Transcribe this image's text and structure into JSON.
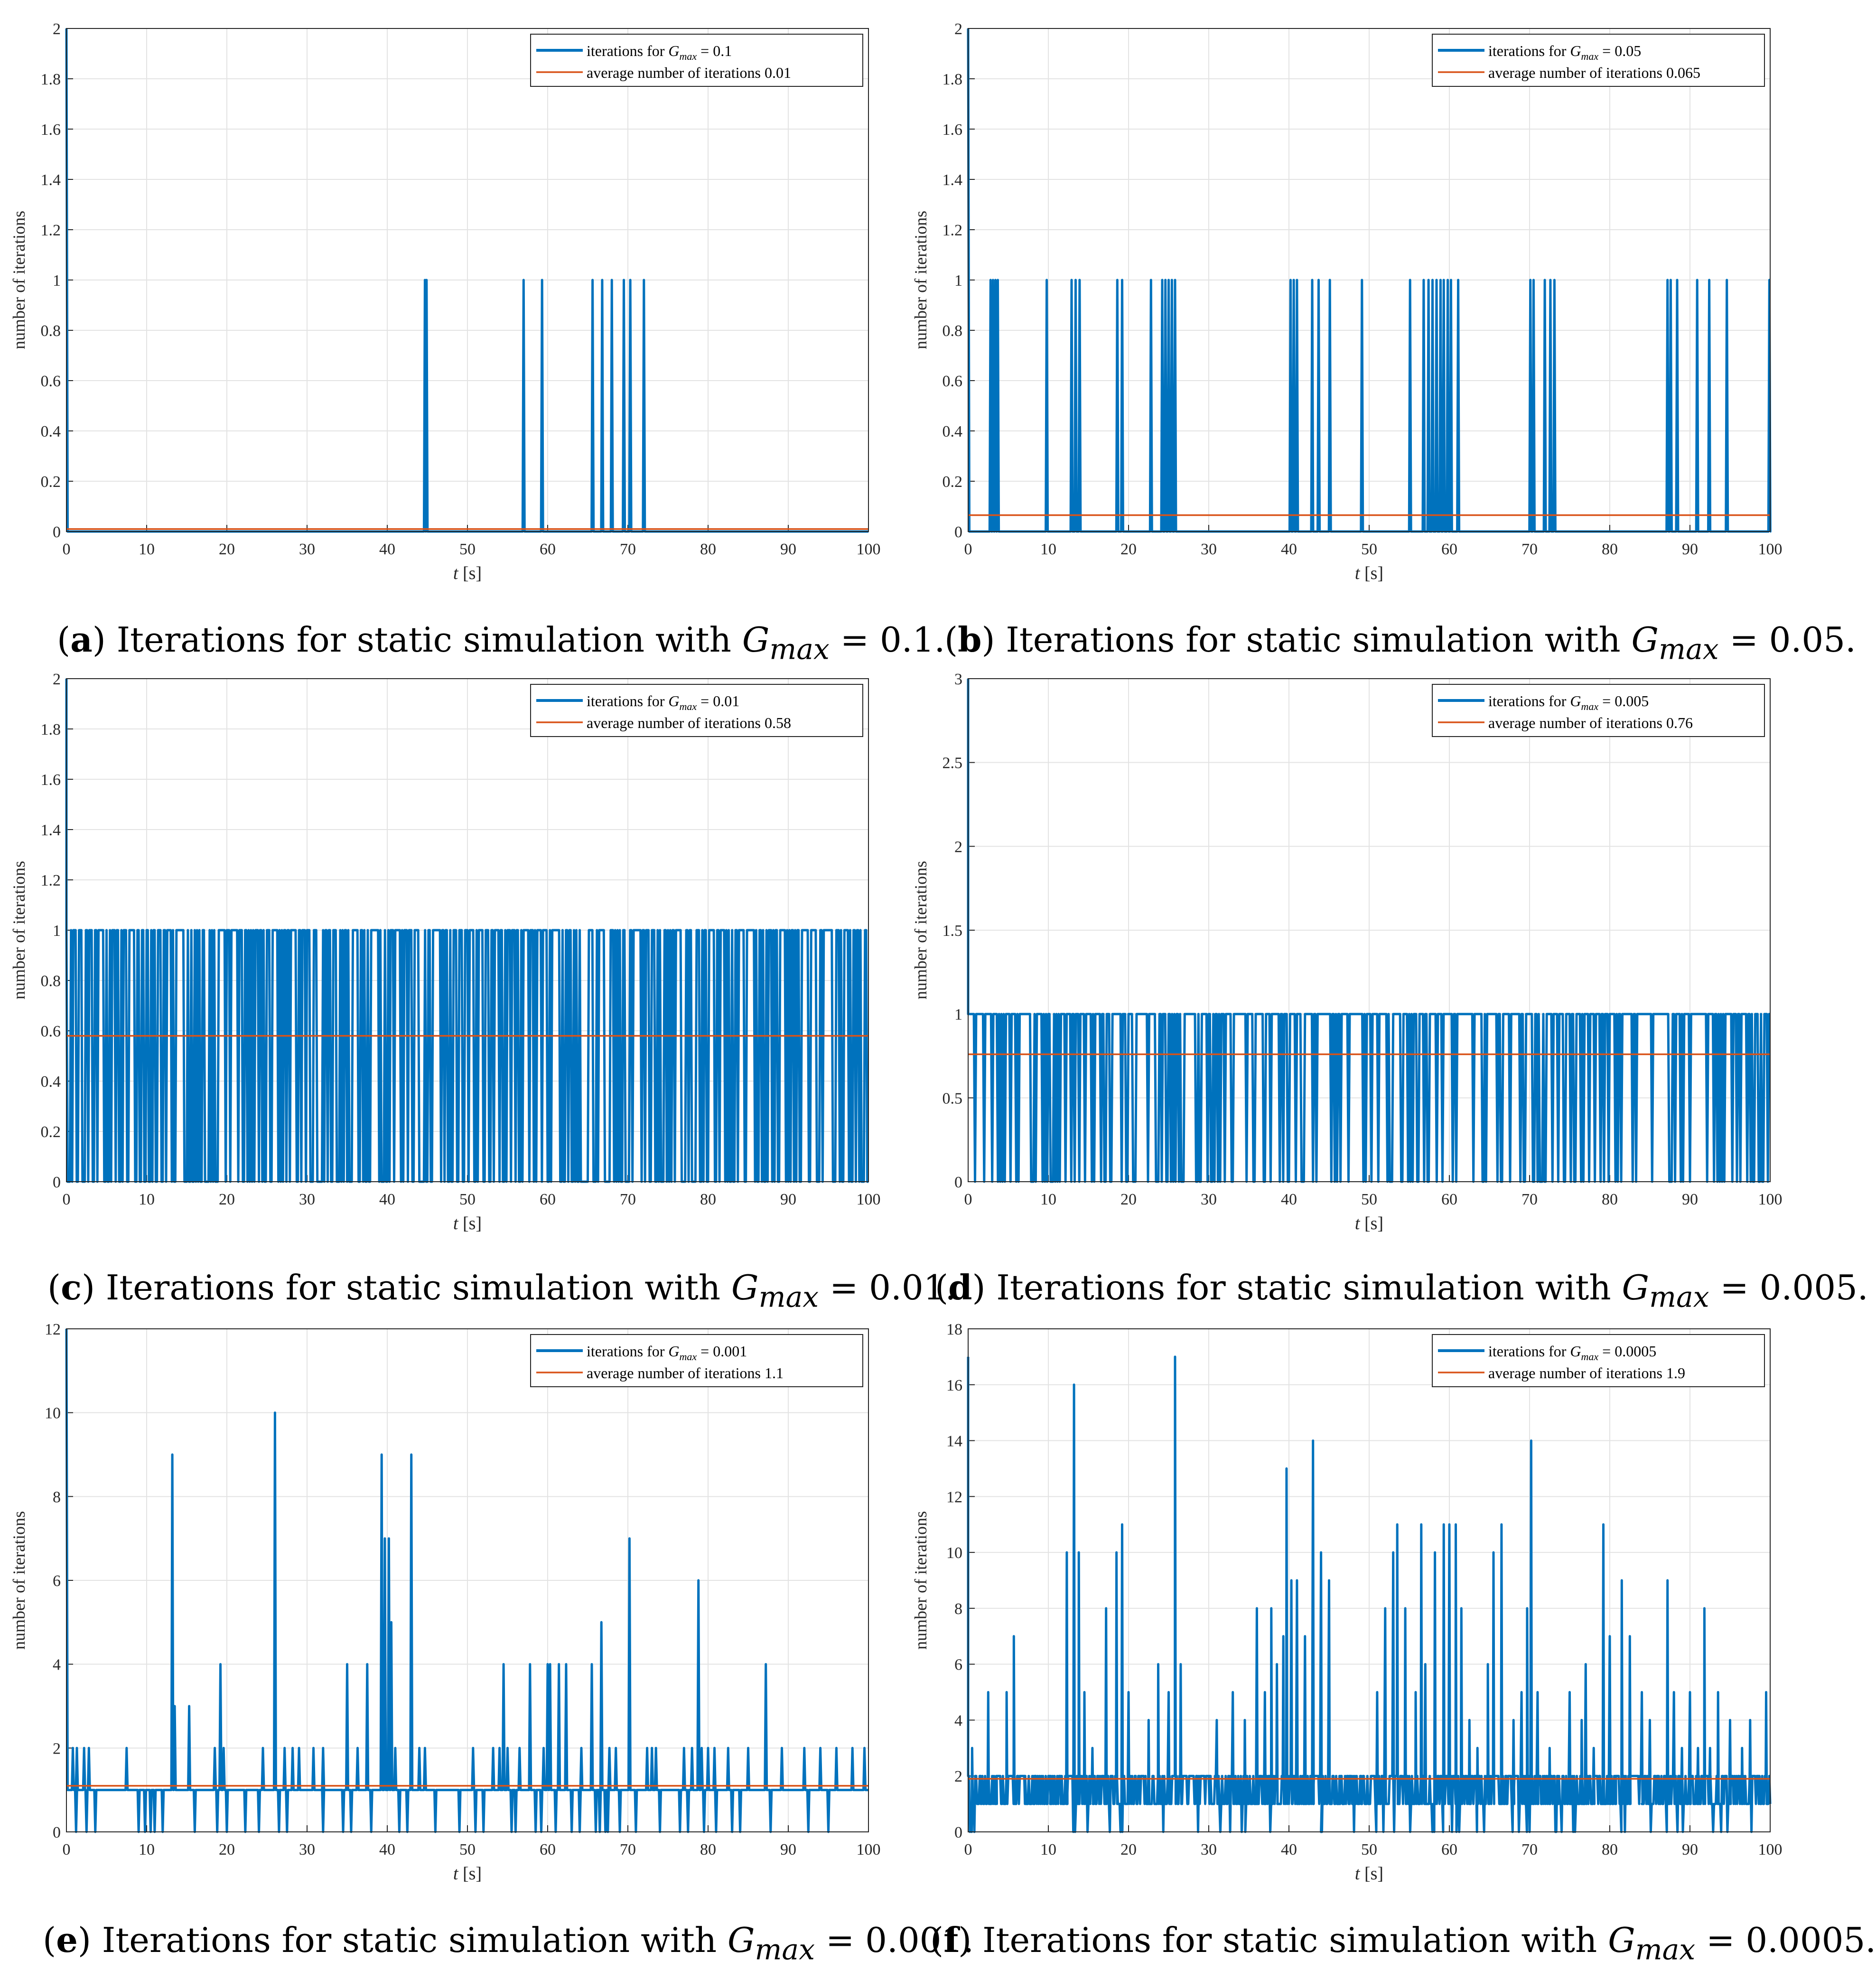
{
  "ylabel": "number of iterations",
  "xlabel_t": "t",
  "xlabel_unit": "[s]",
  "chart_data": [
    {
      "id": "a",
      "type": "line",
      "caption_letter": "a",
      "caption_text": "Iterations for static simulation with",
      "caption_symbol": "G",
      "caption_sub": "max",
      "caption_value": "= 0.1.",
      "legend_series": "iterations for G",
      "legend_series_sub": "max",
      "legend_series_value": "= 0.1",
      "legend_avg": "average number of iterations 0.01",
      "xlim": [
        0,
        100
      ],
      "ylim": [
        0,
        2
      ],
      "xticks": [
        0,
        10,
        20,
        30,
        40,
        50,
        60,
        70,
        80,
        90,
        100
      ],
      "yticks": [
        0,
        0.2,
        0.4,
        0.6,
        0.8,
        1,
        1.2,
        1.4,
        1.6,
        1.8,
        2
      ],
      "ytick_labels": [
        "0",
        "0.2",
        "0.4",
        "0.6",
        "0.8",
        "1",
        "1.2",
        "1.4",
        "1.6",
        "1.8",
        "2"
      ],
      "average": 0.01,
      "series_pattern": "spikes",
      "start_value": 2,
      "spike_times": [
        44.7,
        44.9,
        57.0,
        59.3,
        65.6,
        66.8,
        68.0,
        69.5,
        70.3,
        72.0
      ],
      "spike_values": [
        1,
        1,
        1,
        1,
        1,
        1,
        1,
        1,
        1,
        1
      ],
      "baseline": 0,
      "colors": {
        "series": "#0072BD",
        "average": "#D95319"
      }
    },
    {
      "id": "b",
      "type": "line",
      "caption_letter": "b",
      "caption_text": "Iterations for static simulation with",
      "caption_symbol": "G",
      "caption_sub": "max",
      "caption_value": "= 0.05.",
      "legend_series": "iterations for G",
      "legend_series_sub": "max",
      "legend_series_value": "= 0.05",
      "legend_avg": "average number of iterations 0.065",
      "xlim": [
        0,
        100
      ],
      "ylim": [
        0,
        2
      ],
      "xticks": [
        0,
        10,
        20,
        30,
        40,
        50,
        60,
        70,
        80,
        90,
        100
      ],
      "yticks": [
        0,
        0.2,
        0.4,
        0.6,
        0.8,
        1,
        1.2,
        1.4,
        1.6,
        1.8,
        2
      ],
      "ytick_labels": [
        "0",
        "0.2",
        "0.4",
        "0.6",
        "0.8",
        "1",
        "1.2",
        "1.4",
        "1.6",
        "1.8",
        "2"
      ],
      "average": 0.065,
      "series_pattern": "spikes",
      "start_value": 2,
      "spike_times": [
        2.8,
        3.1,
        3.4,
        3.7,
        9.8,
        12.9,
        13.4,
        13.9,
        18.6,
        19.2,
        22.8,
        24.2,
        24.6,
        25.0,
        25.4,
        25.8,
        40.2,
        40.6,
        41.0,
        42.9,
        43.7,
        45.1,
        49.1,
        55.1,
        56.8,
        57.4,
        57.9,
        58.4,
        58.9,
        59.3,
        59.8,
        60.2,
        61.1,
        70.1,
        70.5,
        71.9,
        72.6,
        73.1,
        87.2,
        87.6,
        88.4,
        90.9,
        92.4,
        94.6,
        99.9
      ],
      "spike_values": [
        1,
        1,
        1,
        1,
        1,
        1,
        1,
        1,
        1,
        1,
        1,
        1,
        1,
        1,
        1,
        1,
        1,
        1,
        1,
        1,
        1,
        1,
        1,
        1,
        1,
        1,
        1,
        1,
        1,
        1,
        1,
        1,
        1,
        1,
        1,
        1,
        1,
        1,
        1,
        1,
        1,
        1,
        1,
        1,
        1
      ],
      "baseline": 0,
      "colors": {
        "series": "#0072BD",
        "average": "#D95319"
      }
    },
    {
      "id": "c",
      "type": "line",
      "caption_letter": "c",
      "caption_text": "Iterations for static simulation with",
      "caption_symbol": "G",
      "caption_sub": "max",
      "caption_value": "= 0.01.",
      "legend_series": "iterations for G",
      "legend_series_sub": "max",
      "legend_series_value": "= 0.01",
      "legend_avg": "average number of iterations 0.58",
      "xlim": [
        0,
        100
      ],
      "ylim": [
        0,
        2
      ],
      "xticks": [
        0,
        10,
        20,
        30,
        40,
        50,
        60,
        70,
        80,
        90,
        100
      ],
      "yticks": [
        0,
        0.2,
        0.4,
        0.6,
        0.8,
        1,
        1.2,
        1.4,
        1.6,
        1.8,
        2
      ],
      "ytick_labels": [
        "0",
        "0.2",
        "0.4",
        "0.6",
        "0.8",
        "1",
        "1.2",
        "1.4",
        "1.6",
        "1.8",
        "2"
      ],
      "average": 0.58,
      "series_pattern": "binary-dense",
      "start_value": 2,
      "low": 0,
      "high": 1,
      "density": 0.58,
      "samples": 700,
      "seed": 7,
      "colors": {
        "series": "#0072BD",
        "average": "#D95319"
      }
    },
    {
      "id": "d",
      "type": "line",
      "caption_letter": "d",
      "caption_text": "Iterations for static simulation with",
      "caption_symbol": "G",
      "caption_sub": "max",
      "caption_value": "= 0.005.",
      "legend_series": "iterations for G",
      "legend_series_sub": "max",
      "legend_series_value": "= 0.005",
      "legend_avg": "average number of iterations 0.76",
      "xlim": [
        0,
        100
      ],
      "ylim": [
        0,
        3
      ],
      "xticks": [
        0,
        10,
        20,
        30,
        40,
        50,
        60,
        70,
        80,
        90,
        100
      ],
      "yticks": [
        0,
        0.5,
        1,
        1.5,
        2,
        2.5,
        3
      ],
      "ytick_labels": [
        "0",
        "0.5",
        "1",
        "1.5",
        "2",
        "2.5",
        "3"
      ],
      "average": 0.76,
      "series_pattern": "binary-dense",
      "start_value": 3,
      "low": 0,
      "high": 1,
      "density": 0.76,
      "samples": 700,
      "seed": 13,
      "colors": {
        "series": "#0072BD",
        "average": "#D95319"
      }
    },
    {
      "id": "e",
      "type": "line",
      "caption_letter": "e",
      "caption_text": "Iterations for static simulation with",
      "caption_symbol": "G",
      "caption_sub": "max",
      "caption_value": "= 0.001.",
      "legend_series": "iterations for G",
      "legend_series_sub": "max",
      "legend_series_value": "= 0.001",
      "legend_avg": "average number of iterations 1.1",
      "xlim": [
        0,
        100
      ],
      "ylim": [
        0,
        12
      ],
      "xticks": [
        0,
        10,
        20,
        30,
        40,
        50,
        60,
        70,
        80,
        90,
        100
      ],
      "yticks": [
        0,
        2,
        4,
        6,
        8,
        10,
        12
      ],
      "ytick_labels": [
        "0",
        "2",
        "4",
        "6",
        "8",
        "10",
        "12"
      ],
      "average": 1.1,
      "series_pattern": "spikes",
      "start_value": 12,
      "baseline": 1,
      "spike_times": [
        0.8,
        1.3,
        2.2,
        2.8,
        7.5,
        13.2,
        13.5,
        15.3,
        18.5,
        19.2,
        19.6,
        24.5,
        26.0,
        27.2,
        28.2,
        29.0,
        30.8,
        32.0,
        35.0,
        36.3,
        37.5,
        39.3,
        39.7,
        40.2,
        40.5,
        41.0,
        43.0,
        44.0,
        44.7,
        50.7,
        53.2,
        54.0,
        54.5,
        55.0,
        56.5,
        57.8,
        59.5,
        60.0,
        60.3,
        61.4,
        62.3,
        64.2,
        65.5,
        66.7,
        67.7,
        68.5,
        70.2,
        72.4,
        73.0,
        73.5,
        77.0,
        78.0,
        78.8,
        79.2,
        80.0,
        80.8,
        82.5,
        85.0,
        87.2,
        89.2,
        92.0,
        94.0,
        96.0,
        98.0,
        99.5
      ],
      "spike_values": [
        2,
        2,
        2,
        2,
        2,
        9,
        3,
        3,
        2,
        4,
        2,
        2,
        10,
        2,
        2,
        2,
        2,
        2,
        4,
        2,
        4,
        9,
        7,
        7,
        5,
        2,
        9,
        2,
        2,
        2,
        2,
        2,
        4,
        2,
        2,
        4,
        2,
        4,
        4,
        4,
        4,
        2,
        4,
        5,
        2,
        2,
        7,
        2,
        2,
        2,
        2,
        2,
        6,
        2,
        2,
        2,
        2,
        2,
        4,
        2,
        2,
        2,
        2,
        2,
        2
      ],
      "dip_times": [
        1.2,
        2.5,
        3.6,
        9.0,
        9.8,
        10.5,
        11.0,
        12.0,
        16.0,
        18.8,
        20.0,
        22.3,
        24.0,
        26.5,
        27.5,
        32.0,
        34.5,
        35.5,
        38.0,
        41.5,
        42.5,
        46.0,
        49.0,
        51.0,
        52.0,
        55.5,
        56.0,
        58.5,
        59.2,
        61.0,
        63.0,
        64.0,
        66.0,
        66.5,
        67.2,
        67.5,
        69.0,
        71.0,
        74.0,
        76.5,
        77.5,
        79.5,
        81.0,
        83.0,
        84.0,
        87.8,
        92.5,
        95.0
      ],
      "colors": {
        "series": "#0072BD",
        "average": "#D95319"
      }
    },
    {
      "id": "f",
      "type": "line",
      "caption_letter": "f",
      "caption_text": "Iterations for static simulation with",
      "caption_symbol": "G",
      "caption_sub": "max",
      "caption_value": "= 0.0005.",
      "legend_series": "iterations for G",
      "legend_series_sub": "max",
      "legend_series_value": "= 0.0005",
      "legend_avg": "average number of iterations 1.9",
      "xlim": [
        0,
        100
      ],
      "ylim": [
        0,
        18
      ],
      "xticks": [
        0,
        10,
        20,
        30,
        40,
        50,
        60,
        70,
        80,
        90,
        100
      ],
      "yticks": [
        0,
        2,
        4,
        6,
        8,
        10,
        12,
        14,
        16,
        18
      ],
      "ytick_labels": [
        "0",
        "2",
        "4",
        "6",
        "8",
        "10",
        "12",
        "14",
        "16",
        "18"
      ],
      "average": 1.9,
      "series_pattern": "noisy",
      "start_value": 17,
      "baseline": 1,
      "peaks": [
        [
          0.5,
          3
        ],
        [
          1.5,
          2
        ],
        [
          2.5,
          5
        ],
        [
          3.5,
          2
        ],
        [
          4.8,
          5
        ],
        [
          5.7,
          7
        ],
        [
          7.0,
          2
        ],
        [
          8.2,
          2
        ],
        [
          10.2,
          2
        ],
        [
          11.5,
          2
        ],
        [
          12.3,
          10
        ],
        [
          13.2,
          16
        ],
        [
          13.8,
          10
        ],
        [
          14.5,
          5
        ],
        [
          15.5,
          3
        ],
        [
          17.2,
          8
        ],
        [
          18.5,
          10
        ],
        [
          19.2,
          11
        ],
        [
          20.0,
          5
        ],
        [
          22.5,
          4
        ],
        [
          23.7,
          6
        ],
        [
          25.0,
          5
        ],
        [
          25.8,
          17
        ],
        [
          26.5,
          6
        ],
        [
          28.5,
          2
        ],
        [
          30.0,
          2
        ],
        [
          31.0,
          4
        ],
        [
          33.0,
          5
        ],
        [
          34.5,
          4
        ],
        [
          36.0,
          8
        ],
        [
          37.0,
          5
        ],
        [
          37.8,
          8
        ],
        [
          38.5,
          6
        ],
        [
          39.3,
          7
        ],
        [
          39.7,
          13
        ],
        [
          40.3,
          9
        ],
        [
          41.0,
          9
        ],
        [
          42.0,
          7
        ],
        [
          43.0,
          14
        ],
        [
          44.0,
          10
        ],
        [
          45.0,
          9
        ],
        [
          46.3,
          2
        ],
        [
          47.5,
          2
        ],
        [
          49.0,
          2
        ],
        [
          51.0,
          5
        ],
        [
          52.0,
          8
        ],
        [
          53.0,
          10
        ],
        [
          53.5,
          11
        ],
        [
          54.5,
          8
        ],
        [
          55.8,
          5
        ],
        [
          56.5,
          11
        ],
        [
          57.0,
          6
        ],
        [
          58.2,
          10
        ],
        [
          59.3,
          11
        ],
        [
          60.0,
          11
        ],
        [
          60.8,
          11
        ],
        [
          61.5,
          8
        ],
        [
          62.5,
          4
        ],
        [
          63.5,
          3
        ],
        [
          64.8,
          6
        ],
        [
          65.5,
          10
        ],
        [
          66.5,
          11
        ],
        [
          67.0,
          2
        ],
        [
          68.0,
          4
        ],
        [
          69.0,
          5
        ],
        [
          69.7,
          8
        ],
        [
          70.2,
          14
        ],
        [
          71.0,
          5
        ],
        [
          72.5,
          3
        ],
        [
          73.5,
          2
        ],
        [
          75.0,
          5
        ],
        [
          76.5,
          4
        ],
        [
          77.0,
          6
        ],
        [
          78.0,
          3
        ],
        [
          79.2,
          11
        ],
        [
          80.0,
          7
        ],
        [
          80.7,
          2
        ],
        [
          81.5,
          9
        ],
        [
          82.5,
          7
        ],
        [
          84.0,
          5
        ],
        [
          85.0,
          4
        ],
        [
          86.0,
          2
        ],
        [
          87.2,
          9
        ],
        [
          88.0,
          5
        ],
        [
          89.0,
          3
        ],
        [
          90.0,
          5
        ],
        [
          91.0,
          3
        ],
        [
          91.8,
          8
        ],
        [
          92.5,
          3
        ],
        [
          93.5,
          5
        ],
        [
          95.0,
          4
        ],
        [
          96.5,
          3
        ],
        [
          97.5,
          4
        ],
        [
          98.5,
          2
        ],
        [
          99.5,
          5
        ]
      ],
      "colors": {
        "series": "#0072BD",
        "average": "#D95319"
      }
    }
  ]
}
